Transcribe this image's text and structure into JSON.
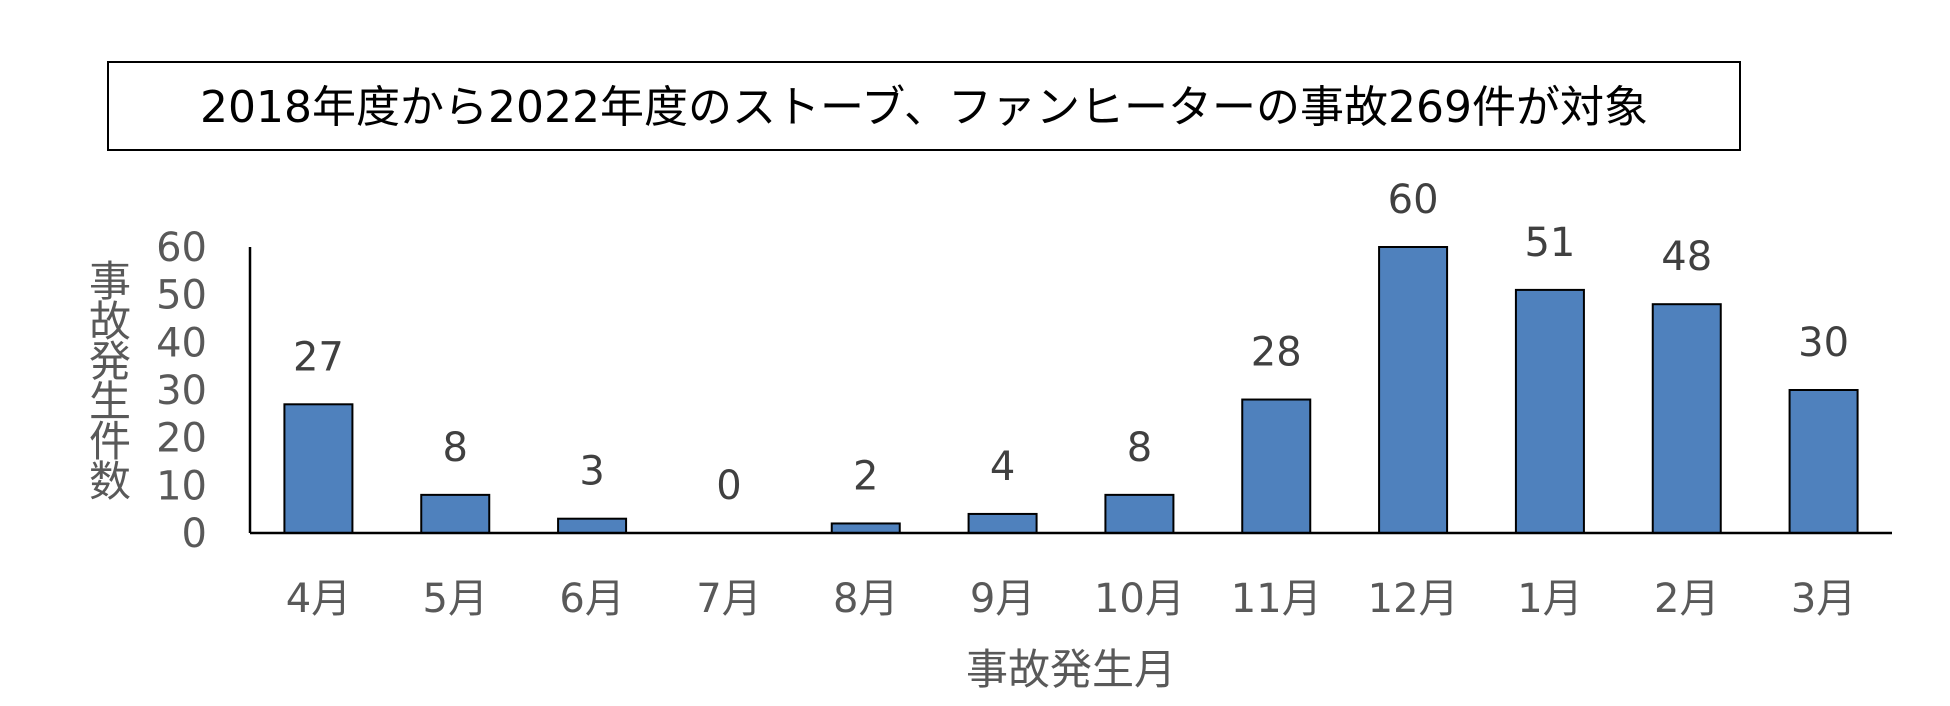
{
  "title": "2018年度から2022年度のストーブ、ファンヒーターの事故269件が対象",
  "xlabel": "事故発生月",
  "ylabel": "事故発生件数",
  "colors": {
    "bar": "#4f81bd",
    "bar_outline": "#000000"
  },
  "chart_data": {
    "type": "bar",
    "title": "2018年度から2022年度のストーブ、ファンヒーターの事故269件が対象",
    "xlabel": "事故発生月",
    "ylabel": "事故発生件数",
    "categories": [
      "4月",
      "5月",
      "6月",
      "7月",
      "8月",
      "9月",
      "10月",
      "11月",
      "12月",
      "1月",
      "2月",
      "3月"
    ],
    "values": [
      27,
      8,
      3,
      0,
      2,
      4,
      8,
      28,
      60,
      51,
      48,
      30
    ],
    "ylim": [
      0,
      60
    ],
    "yticks": [
      0,
      10,
      20,
      30,
      40,
      50,
      60
    ],
    "data_labels": true,
    "grid": false,
    "legend": "none"
  }
}
